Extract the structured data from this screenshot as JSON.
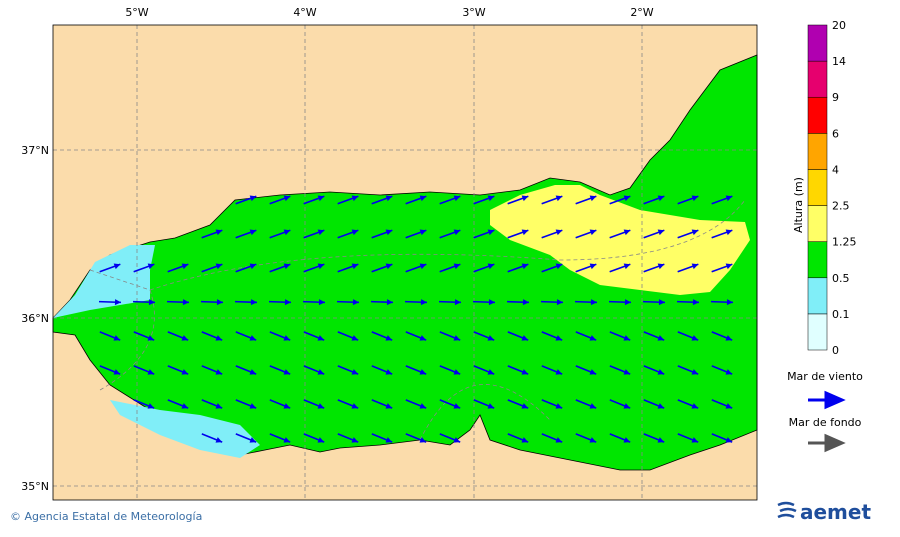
{
  "map": {
    "lon_labels": [
      "5°W",
      "4°W",
      "3°W",
      "2°W"
    ],
    "lat_labels": [
      "37°N",
      "36°N",
      "35°N"
    ]
  },
  "colorbar": {
    "title": "Altura (m)",
    "levels": [
      "0",
      "0.1",
      "0.5",
      "1.25",
      "2.5",
      "4",
      "6",
      "9",
      "14",
      "20"
    ],
    "colors": [
      "#e0ffff",
      "#80eef8",
      "#00e600",
      "#ffff66",
      "#ffd700",
      "#ffa500",
      "#ff0000",
      "#e6006e",
      "#b000b0"
    ]
  },
  "legend": {
    "wind_sea": "Mar de viento",
    "swell": "Mar de fondo"
  },
  "footer": {
    "credit": "© Agencia Estatal de Meteorología",
    "logo": "aemet"
  }
}
